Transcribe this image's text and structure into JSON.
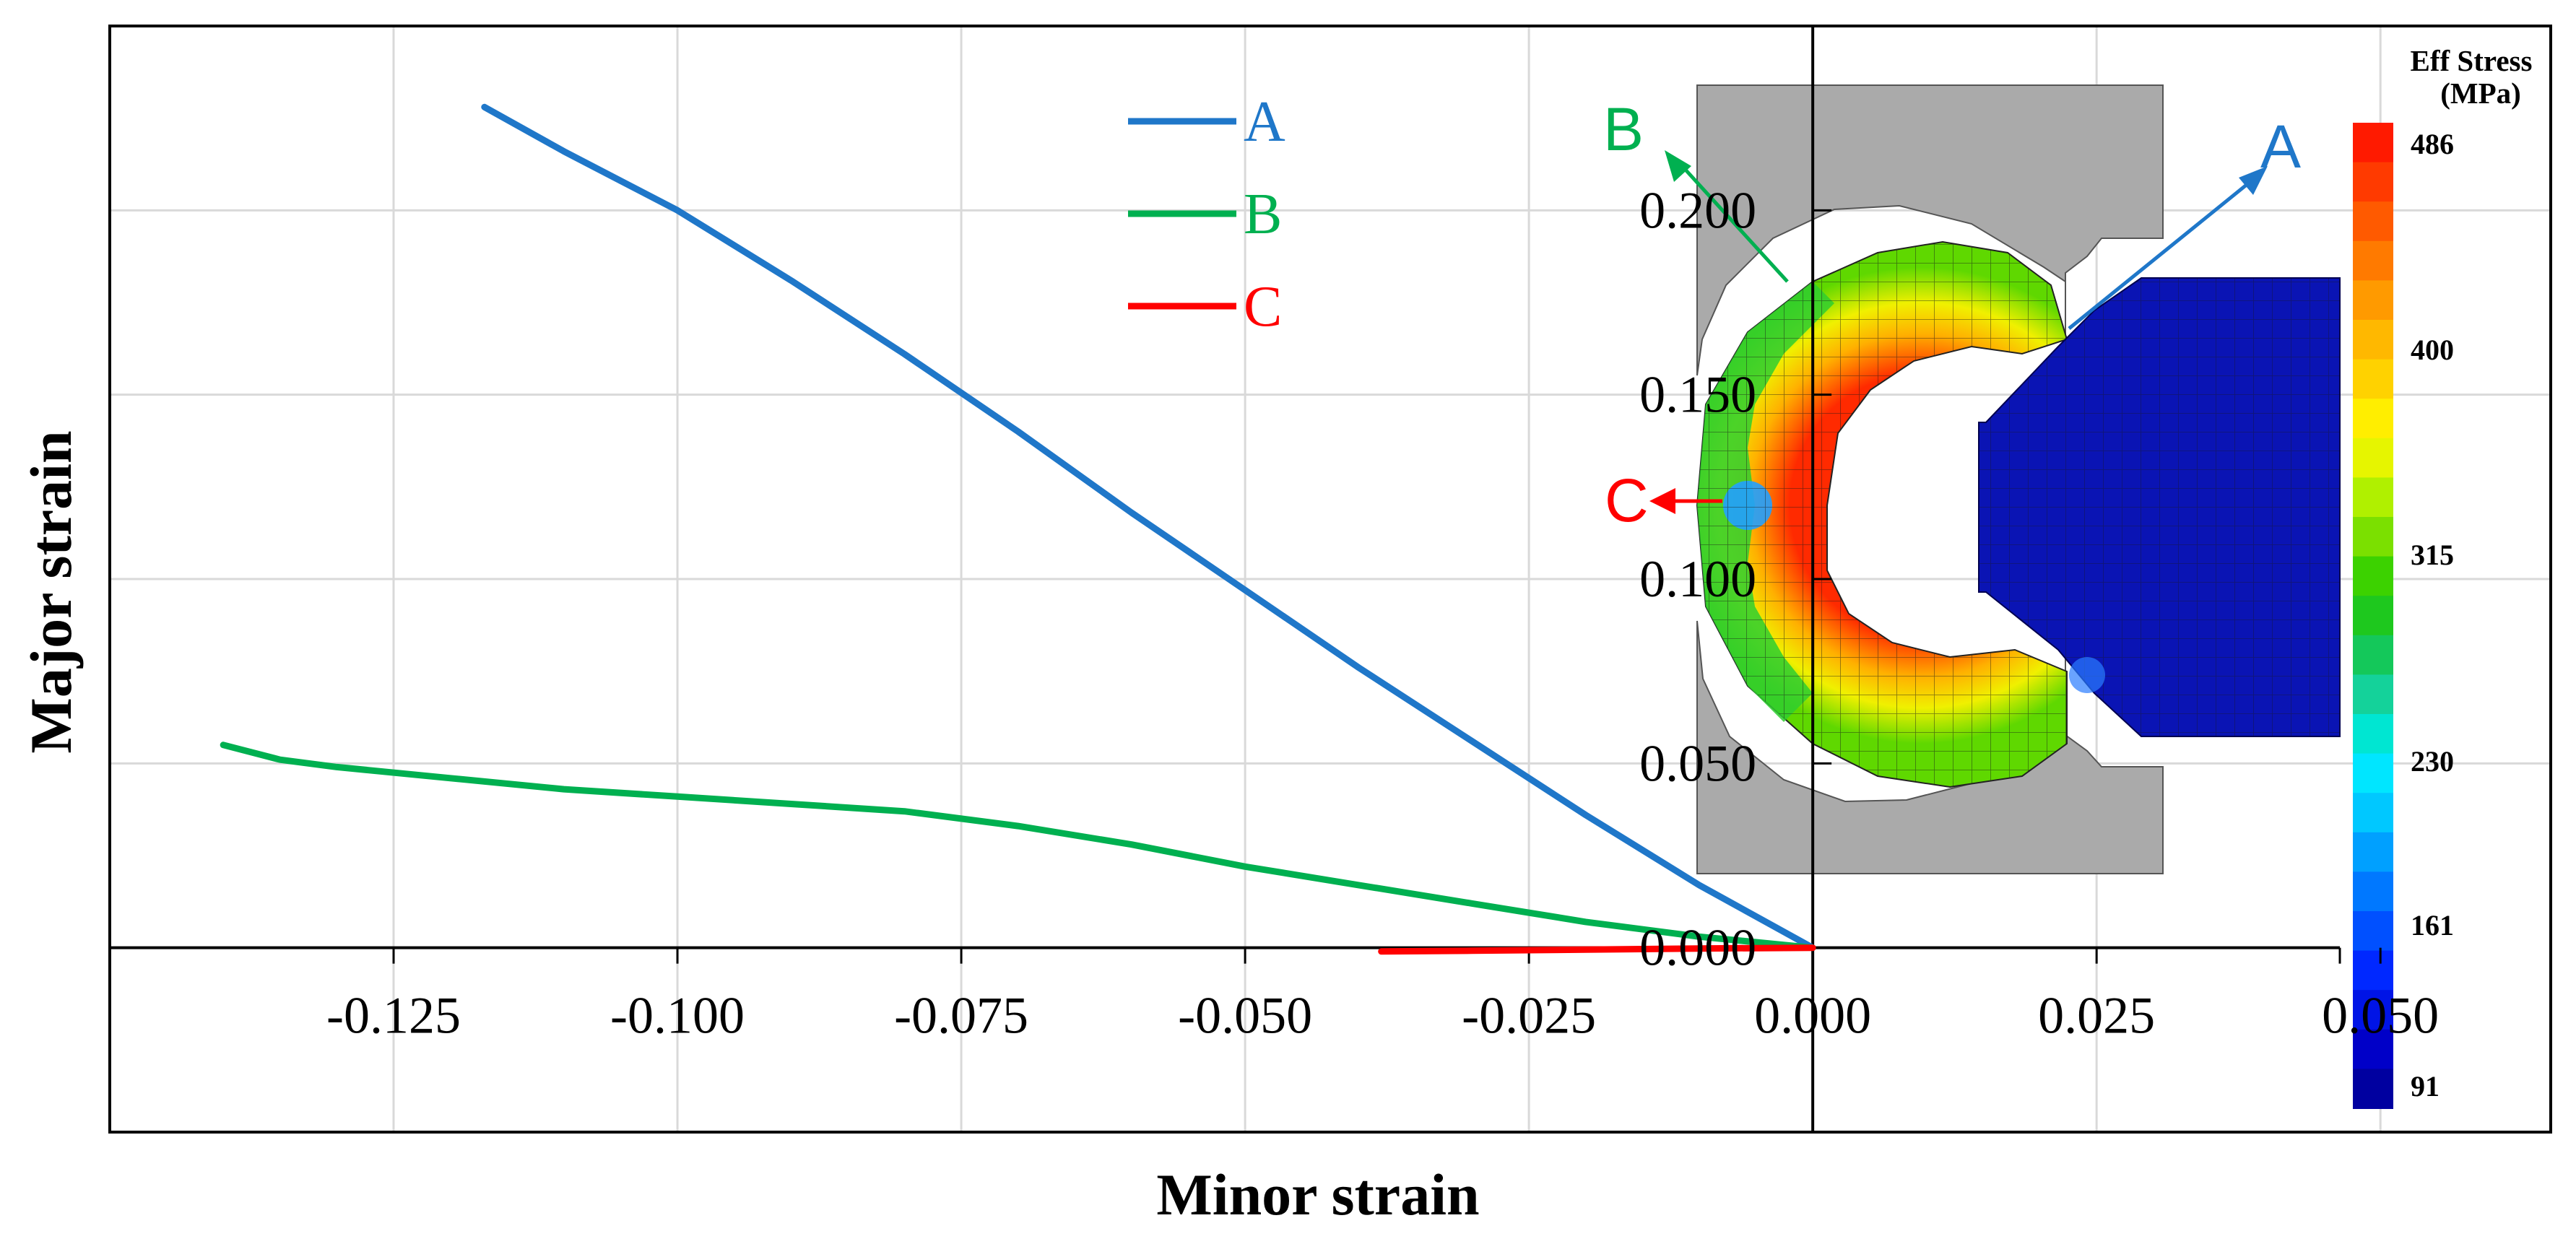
{
  "chart_data": {
    "type": "line",
    "xlabel": "Minor strain",
    "ylabel": "Major strain",
    "xlim": [
      -0.15,
      0.065
    ],
    "ylim": [
      -0.05,
      0.25
    ],
    "x_ticks": [
      -0.125,
      -0.1,
      -0.075,
      -0.05,
      -0.025,
      0.0,
      0.025,
      0.05
    ],
    "x_tick_labels": [
      "-0.125",
      "-0.100",
      "-0.075",
      "-0.050",
      "-0.025",
      "0.000",
      "0.025",
      "0.050"
    ],
    "y_ticks": [
      0.0,
      0.05,
      0.1,
      0.15,
      0.2
    ],
    "y_tick_labels": [
      "0.000",
      "0.050",
      "0.100",
      "0.150",
      "0.200"
    ],
    "grid": true,
    "legend_position": "top-center",
    "series": [
      {
        "name": "A",
        "color": "#1f77c9",
        "x": [
          -0.117,
          -0.11,
          -0.1,
          -0.09,
          -0.08,
          -0.07,
          -0.06,
          -0.05,
          -0.04,
          -0.03,
          -0.02,
          -0.01,
          0.0
        ],
        "y": [
          0.228,
          0.216,
          0.2,
          0.181,
          0.161,
          0.14,
          0.118,
          0.097,
          0.076,
          0.056,
          0.036,
          0.017,
          0.0
        ]
      },
      {
        "name": "B",
        "color": "#00b050",
        "x": [
          -0.14,
          -0.135,
          -0.13,
          -0.12,
          -0.11,
          -0.1,
          -0.09,
          -0.08,
          -0.07,
          -0.06,
          -0.05,
          -0.04,
          -0.03,
          -0.02,
          -0.01,
          0.0
        ],
        "y": [
          0.055,
          0.051,
          0.049,
          0.046,
          0.043,
          0.041,
          0.039,
          0.037,
          0.033,
          0.028,
          0.022,
          0.017,
          0.012,
          0.007,
          0.003,
          0.0
        ]
      },
      {
        "name": "C",
        "color": "#ff0000",
        "x": [
          -0.038,
          -0.03,
          -0.02,
          -0.01,
          0.0
        ],
        "y": [
          -0.001,
          -0.0008,
          -0.0005,
          -0.0002,
          0.0
        ]
      }
    ]
  },
  "fem_inset": {
    "labels": [
      "A",
      "B",
      "C"
    ],
    "label_colors": {
      "A": "#1f77c9",
      "B": "#00b050",
      "C": "#ff0000"
    },
    "colorbar": {
      "title_line1": "Eff Stress",
      "title_line2": "(MPa)",
      "tick_values": [
        486,
        400,
        315,
        230,
        161,
        91
      ],
      "tick_labels": [
        "486",
        "400",
        "315",
        "230",
        "161",
        "91"
      ],
      "colors": [
        "#ff1a00",
        "#ff3a00",
        "#ff5a00",
        "#ff7a00",
        "#ff9a00",
        "#ffb800",
        "#ffd200",
        "#ffee00",
        "#e6f500",
        "#b0f000",
        "#7be000",
        "#3cd200",
        "#1ec81e",
        "#14c85a",
        "#14d29a",
        "#00e6d2",
        "#00e6ff",
        "#00c8ff",
        "#00a0ff",
        "#0078ff",
        "#0050ff",
        "#0028ff",
        "#0014e6",
        "#0000c8",
        "#0000a0"
      ]
    }
  }
}
